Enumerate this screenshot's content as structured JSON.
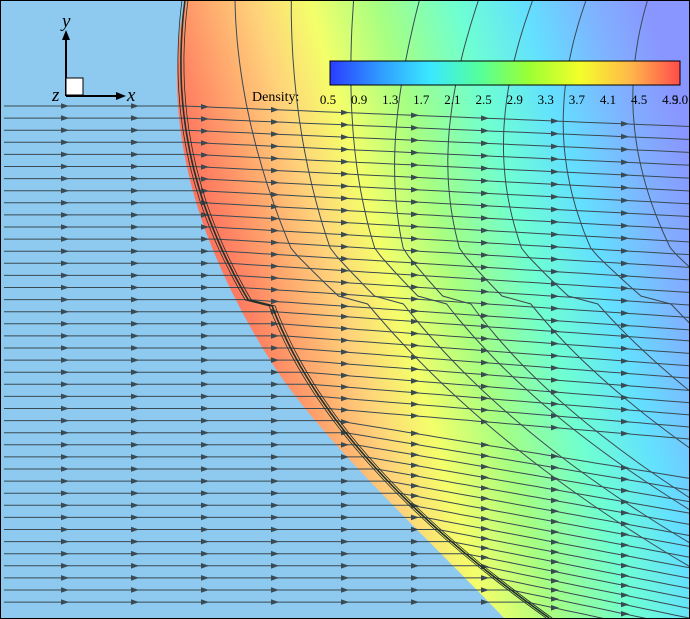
{
  "figure": {
    "colors": {
      "freestream": "#8ec9ef",
      "streamline": "#3a4a52",
      "contour": "#3a4a52",
      "shock": "#22302a",
      "frame": "#000000"
    }
  },
  "axes_triad": {
    "x_label": "x",
    "y_label": "y",
    "z_label": "z"
  },
  "colorbar": {
    "label": "Density:",
    "range": [
      0.5,
      5.0
    ],
    "ticks": [
      "0.5",
      "0.9",
      "1.3",
      "1.7",
      "2.1",
      "2.5",
      "2.9",
      "3.3",
      "3.7",
      "4.1",
      "4.5",
      "4.9",
      "5.0"
    ],
    "colors": [
      "#2a3cff",
      "#2f9bff",
      "#39e9ff",
      "#55ff9a",
      "#9cff33",
      "#f4ff2a",
      "#ffb84a",
      "#ff4c4c"
    ]
  }
}
